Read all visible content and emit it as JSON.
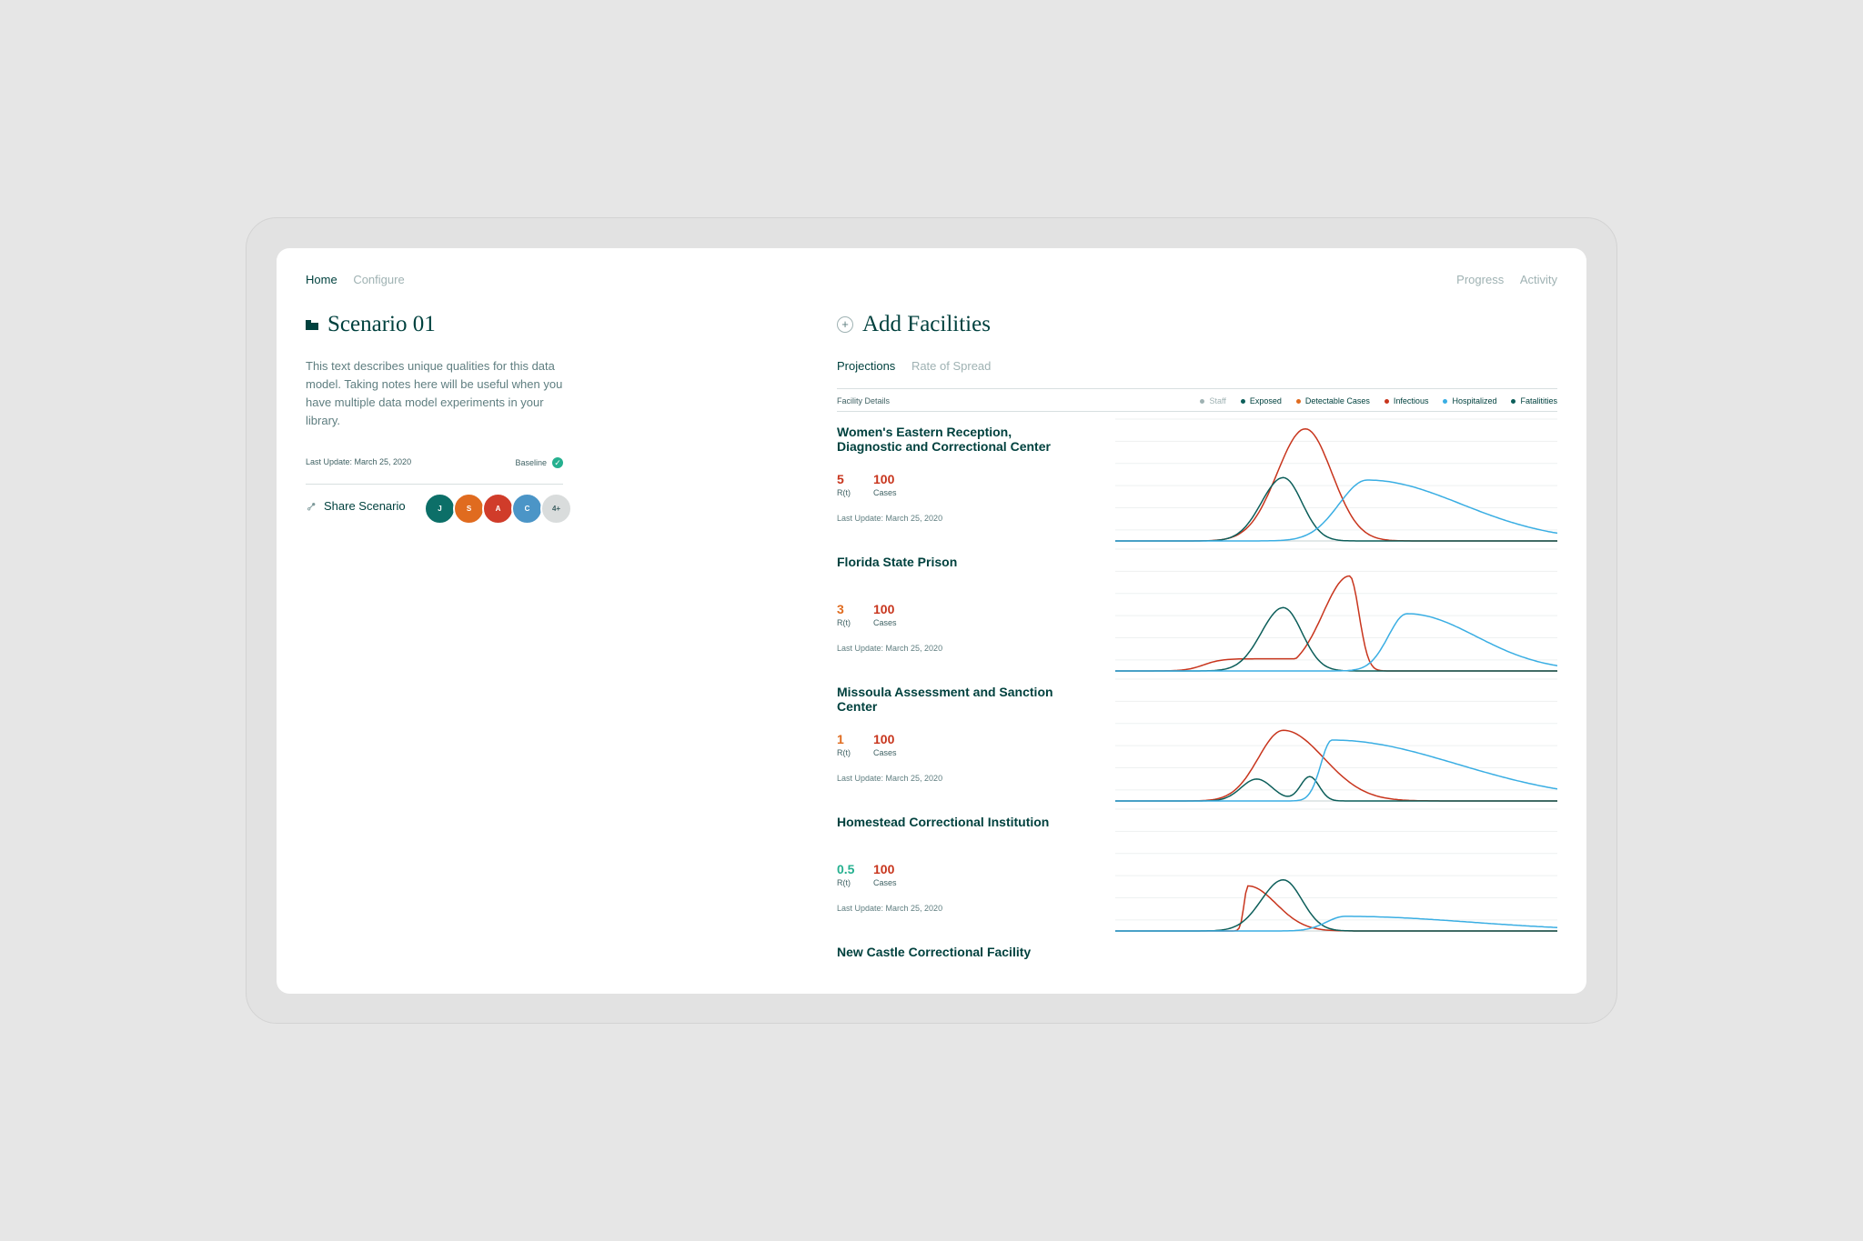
{
  "nav": {
    "left": [
      {
        "label": "Home",
        "active": true
      },
      {
        "label": "Configure",
        "active": false
      }
    ],
    "right": [
      {
        "label": "Progress"
      },
      {
        "label": "Activity"
      }
    ]
  },
  "scenario": {
    "title": "Scenario 01",
    "description": "This text describes unique qualities for this data model. Taking notes here will be useful when you have multiple data model experiments in your library.",
    "last_update": "Last Update: March 25, 2020",
    "baseline_label": "Baseline",
    "share_label": "Share Scenario",
    "avatars": [
      {
        "initial": "J",
        "color": "#0c6f68"
      },
      {
        "initial": "S",
        "color": "#e06b1f"
      },
      {
        "initial": "A",
        "color": "#d03c2a"
      },
      {
        "initial": "C",
        "color": "#4b95c7"
      },
      {
        "initial": "4+",
        "color": "#d9dcdc"
      }
    ]
  },
  "facilities_panel": {
    "title": "Add Facilities",
    "tabs": [
      {
        "label": "Projections",
        "active": true
      },
      {
        "label": "Rate of Spread",
        "active": false
      }
    ],
    "details_label": "Facility Details",
    "legend": [
      {
        "label": "Staff",
        "color": "#9fb2b3"
      },
      {
        "label": "Exposed",
        "color": "#0c5e5a"
      },
      {
        "label": "Detectable Cases",
        "color": "#e06b1f"
      },
      {
        "label": "Infectious",
        "color": "#c8351d"
      },
      {
        "label": "Hospitalized",
        "color": "#3aaee3"
      },
      {
        "label": "Fatalitities",
        "color": "#0c5e5a"
      }
    ]
  },
  "colors": {
    "infectious": "#c8351d",
    "exposed": "#0c5e5a",
    "hospitalized": "#3aaee3",
    "rt_high": "#c8351d",
    "rt_mid": "#e06b1f",
    "rt_low": "#25b08f"
  },
  "facilities": [
    {
      "name": "Women's Eastern Reception, Diagnostic and Correctional Center",
      "rt": "5",
      "rt_color": "#c8351d",
      "rt_label": "R(t)",
      "cases": "100",
      "cases_label": "Cases",
      "last_update": "Last Update: March 25, 2020"
    },
    {
      "name": "Florida State Prison",
      "rt": "3",
      "rt_color": "#e06b1f",
      "rt_label": "R(t)",
      "cases": "100",
      "cases_label": "Cases",
      "last_update": "Last Update: March 25, 2020"
    },
    {
      "name": "Missoula Assessment and Sanction Center",
      "rt": "1",
      "rt_color": "#e06b1f",
      "rt_label": "R(t)",
      "cases": "100",
      "cases_label": "Cases",
      "last_update": "Last Update: March 25, 2020"
    },
    {
      "name": "Homestead Correctional Institution",
      "rt": "0.5",
      "rt_color": "#25b08f",
      "rt_label": "R(t)",
      "cases": "100",
      "cases_label": "Cases",
      "last_update": "Last Update: March 25, 2020"
    },
    {
      "name": "New Castle Correctional Facility"
    }
  ],
  "chart_data": [
    {
      "type": "line",
      "facility": "Women's Eastern Reception, Diagnostic and Correctional Center",
      "x_range": [
        0,
        1
      ],
      "y_range": [
        0,
        1
      ],
      "series": [
        {
          "name": "Infectious",
          "color": "#c8351d",
          "curve": {
            "peak_x": 0.43,
            "peak": 0.92,
            "w_left": 0.09,
            "w_right": 0.085
          }
        },
        {
          "name": "Exposed",
          "color": "#0c5e5a",
          "curve": {
            "peak_x": 0.38,
            "peak": 0.52,
            "w_left": 0.07,
            "w_right": 0.06
          }
        },
        {
          "name": "Hospitalized",
          "color": "#3aaee3",
          "curve": {
            "peak_x": 0.57,
            "peak": 0.5,
            "w_left": 0.09,
            "w_right": 0.3
          }
        }
      ]
    },
    {
      "type": "line",
      "facility": "Florida State Prison",
      "x_range": [
        0,
        1
      ],
      "y_range": [
        0,
        1
      ],
      "series": [
        {
          "name": "Infectious",
          "color": "#c8351d",
          "curve": {
            "peak_x": 0.53,
            "peak": 0.78,
            "w_left": 0.085,
            "w_right": 0.03,
            "shoulder": {
              "x": 0.2,
              "h": 0.1
            }
          }
        },
        {
          "name": "Exposed",
          "color": "#0c5e5a",
          "curve": {
            "peak_x": 0.38,
            "peak": 0.52,
            "w_left": 0.07,
            "w_right": 0.06
          }
        },
        {
          "name": "Hospitalized",
          "color": "#3aaee3",
          "curve": {
            "peak_x": 0.66,
            "peak": 0.47,
            "w_left": 0.06,
            "w_right": 0.22
          }
        }
      ]
    },
    {
      "type": "line",
      "facility": "Missoula Assessment and Sanction Center",
      "x_range": [
        0,
        1
      ],
      "y_range": [
        0,
        1
      ],
      "series": [
        {
          "name": "Infectious",
          "color": "#c8351d",
          "curve": {
            "peak_x": 0.38,
            "peak": 0.58,
            "w_left": 0.08,
            "w_right": 0.13
          }
        },
        {
          "name": "Exposed",
          "color": "#0c5e5a",
          "curve": {
            "peak_x": 0.32,
            "peak": 0.18,
            "w_left": 0.05,
            "w_right": 0.05,
            "second": {
              "x": 0.44,
              "h": 0.2,
              "w": 0.03
            }
          }
        },
        {
          "name": "Hospitalized",
          "color": "#3aaee3",
          "curve": {
            "peak_x": 0.49,
            "peak": 0.5,
            "w_left": 0.035,
            "w_right": 0.4
          }
        }
      ]
    },
    {
      "type": "line",
      "facility": "Homestead Correctional Institution",
      "x_range": [
        0,
        1
      ],
      "y_range": [
        0,
        1
      ],
      "series": [
        {
          "name": "Infectious",
          "color": "#c8351d",
          "curve": {
            "peak_x": 0.3,
            "peak": 0.37,
            "w_left": 0.012,
            "w_right": 0.09
          }
        },
        {
          "name": "Exposed",
          "color": "#0c5e5a",
          "curve": {
            "peak_x": 0.38,
            "peak": 0.42,
            "w_left": 0.07,
            "w_right": 0.06
          }
        },
        {
          "name": "Hospitalized",
          "color": "#3aaee3",
          "curve": {
            "peak_x": 0.52,
            "peak": 0.12,
            "w_left": 0.06,
            "w_right": 0.4
          }
        }
      ]
    }
  ]
}
